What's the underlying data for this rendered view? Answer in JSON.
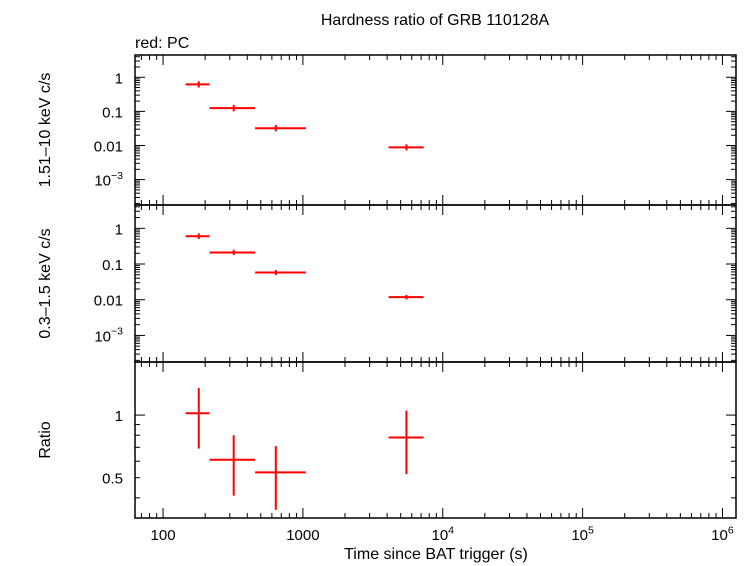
{
  "title": "Hardness ratio of GRB 110128A",
  "legend_label": "red: PC",
  "colors": {
    "data": "#ff0000",
    "axis": "#000000",
    "background": "#ffffff"
  },
  "chart_data": {
    "type": "scatter",
    "title": "Hardness ratio of GRB 110128A",
    "legend": "red: PC",
    "xlabel": "Time since BAT trigger (s)",
    "xscale": "log",
    "xlim": [
      63,
      1250000
    ],
    "x_tick_labels": [
      {
        "value": 100,
        "base": "100",
        "exp": ""
      },
      {
        "value": 1000,
        "base": "1000",
        "exp": ""
      },
      {
        "value": 10000,
        "base": "10",
        "exp": "4"
      },
      {
        "value": 100000,
        "base": "10",
        "exp": "5"
      },
      {
        "value": 1000000,
        "base": "10",
        "exp": "6"
      }
    ],
    "panels": [
      {
        "id": "hard",
        "ylabel": "1.51–10 keV c/s",
        "yscale": "log",
        "ylim": [
          0.00018,
          4.5
        ],
        "y_tick_labels": [
          {
            "value": 1,
            "base": "1",
            "exp": ""
          },
          {
            "value": 0.1,
            "base": "0.1",
            "exp": ""
          },
          {
            "value": 0.01,
            "base": "0.01",
            "exp": ""
          },
          {
            "value": 0.001,
            "base": "10",
            "exp": "−3"
          }
        ],
        "series": [
          {
            "name": "PC",
            "points": [
              {
                "x": 180,
                "xlo": 145,
                "xhi": 215,
                "y": 0.62,
                "ylo": 0.5,
                "yhi": 0.76
              },
              {
                "x": 320,
                "xlo": 215,
                "xhi": 455,
                "y": 0.125,
                "ylo": 0.1,
                "yhi": 0.155
              },
              {
                "x": 640,
                "xlo": 455,
                "xhi": 1050,
                "y": 0.032,
                "ylo": 0.026,
                "yhi": 0.04
              },
              {
                "x": 5500,
                "xlo": 4100,
                "xhi": 7300,
                "y": 0.0088,
                "ylo": 0.0072,
                "yhi": 0.0108
              }
            ]
          }
        ]
      },
      {
        "id": "soft",
        "ylabel": "0.3–1.5 keV c/s",
        "yscale": "log",
        "ylim": [
          0.00018,
          4.5
        ],
        "y_tick_labels": [
          {
            "value": 1,
            "base": "1",
            "exp": ""
          },
          {
            "value": 0.1,
            "base": "0.1",
            "exp": ""
          },
          {
            "value": 0.01,
            "base": "0.01",
            "exp": ""
          },
          {
            "value": 0.001,
            "base": "10",
            "exp": "−3"
          }
        ],
        "series": [
          {
            "name": "PC",
            "points": [
              {
                "x": 180,
                "xlo": 145,
                "xhi": 215,
                "y": 0.6,
                "ylo": 0.5,
                "yhi": 0.72
              },
              {
                "x": 320,
                "xlo": 215,
                "xhi": 455,
                "y": 0.21,
                "ylo": 0.18,
                "yhi": 0.25
              },
              {
                "x": 640,
                "xlo": 455,
                "xhi": 1050,
                "y": 0.058,
                "ylo": 0.049,
                "yhi": 0.068
              },
              {
                "x": 5500,
                "xlo": 4100,
                "xhi": 7300,
                "y": 0.0118,
                "ylo": 0.0102,
                "yhi": 0.0136
              }
            ]
          }
        ]
      },
      {
        "id": "ratio",
        "ylabel": "Ratio",
        "yscale": "log",
        "ylim": [
          0.32,
          1.8
        ],
        "y_tick_labels": [
          {
            "value": 1,
            "base": "1",
            "exp": ""
          },
          {
            "value": 0.5,
            "base": "0.5",
            "exp": ""
          }
        ],
        "series": [
          {
            "name": "PC",
            "points": [
              {
                "x": 180,
                "xlo": 145,
                "xhi": 215,
                "y": 1.02,
                "ylo": 0.69,
                "yhi": 1.35
              },
              {
                "x": 320,
                "xlo": 215,
                "xhi": 455,
                "y": 0.61,
                "ylo": 0.41,
                "yhi": 0.8
              },
              {
                "x": 640,
                "xlo": 455,
                "xhi": 1050,
                "y": 0.53,
                "ylo": 0.35,
                "yhi": 0.71
              },
              {
                "x": 5500,
                "xlo": 4100,
                "xhi": 7300,
                "y": 0.78,
                "ylo": 0.52,
                "yhi": 1.05
              }
            ]
          }
        ]
      }
    ]
  }
}
